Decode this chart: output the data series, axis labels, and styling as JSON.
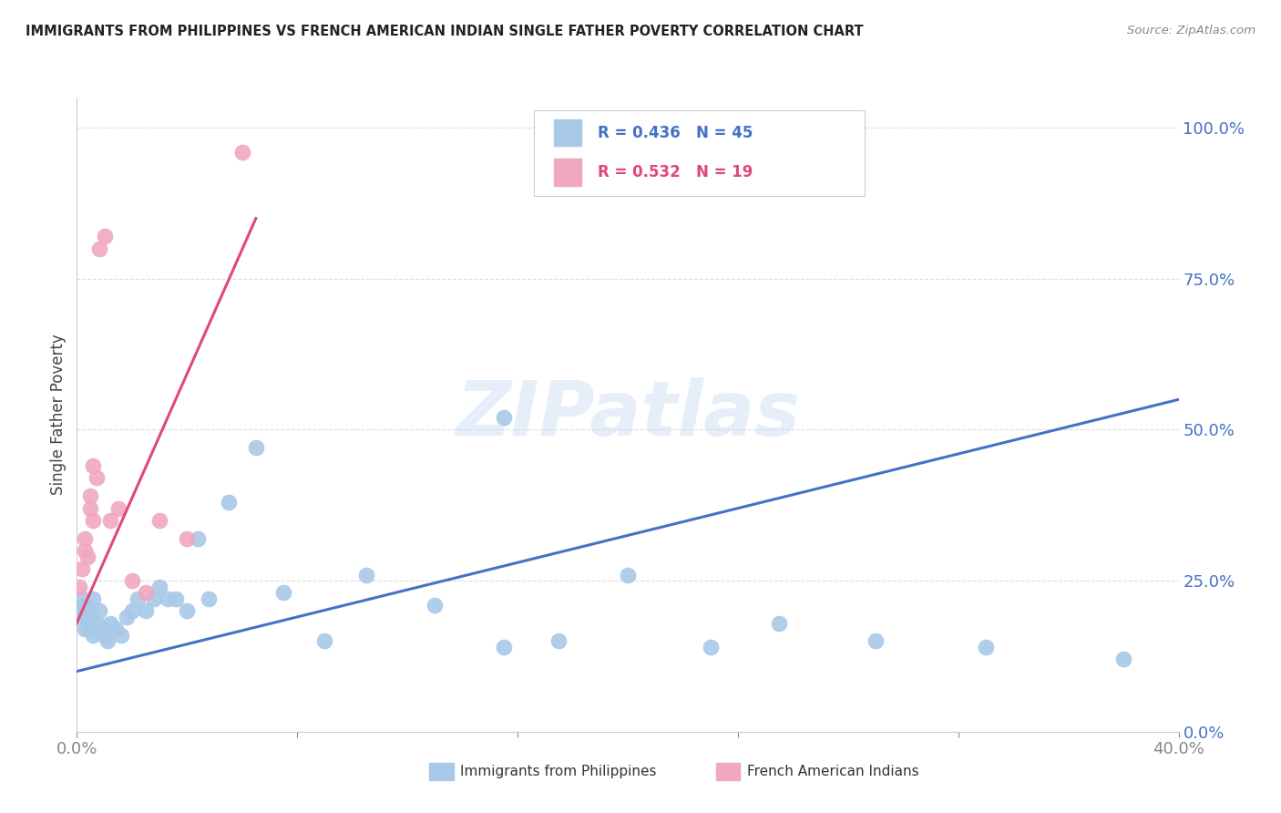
{
  "title": "IMMIGRANTS FROM PHILIPPINES VS FRENCH AMERICAN INDIAN SINGLE FATHER POVERTY CORRELATION CHART",
  "source": "Source: ZipAtlas.com",
  "ylabel": "Single Father Poverty",
  "ytick_vals": [
    0.0,
    0.25,
    0.5,
    0.75,
    1.0
  ],
  "ytick_labels": [
    "0.0%",
    "25.0%",
    "50.0%",
    "75.0%",
    "100.0%"
  ],
  "xtick_vals": [
    0.0,
    0.08,
    0.16,
    0.24,
    0.32,
    0.4
  ],
  "xlim": [
    0.0,
    0.4
  ],
  "ylim": [
    0.0,
    1.05
  ],
  "blue_R": 0.436,
  "blue_N": 45,
  "pink_R": 0.532,
  "pink_N": 19,
  "blue_color": "#a8c8e8",
  "pink_color": "#f0a8c0",
  "blue_line_color": "#4472c4",
  "pink_line_color": "#e04878",
  "watermark": "ZIPatlas",
  "legend_blue_label": "Immigrants from Philippines",
  "legend_pink_label": "French American Indians",
  "blue_points_x": [
    0.001,
    0.002,
    0.002,
    0.003,
    0.003,
    0.004,
    0.004,
    0.005,
    0.005,
    0.006,
    0.006,
    0.007,
    0.008,
    0.009,
    0.01,
    0.011,
    0.012,
    0.014,
    0.016,
    0.018,
    0.02,
    0.022,
    0.025,
    0.028,
    0.03,
    0.033,
    0.036,
    0.04,
    0.044,
    0.048,
    0.055,
    0.065,
    0.075,
    0.09,
    0.105,
    0.13,
    0.155,
    0.175,
    0.2,
    0.23,
    0.255,
    0.29,
    0.155,
    0.33,
    0.38
  ],
  "blue_points_y": [
    0.2,
    0.19,
    0.22,
    0.17,
    0.21,
    0.18,
    0.2,
    0.17,
    0.19,
    0.16,
    0.22,
    0.18,
    0.2,
    0.17,
    0.16,
    0.15,
    0.18,
    0.17,
    0.16,
    0.19,
    0.2,
    0.22,
    0.2,
    0.22,
    0.24,
    0.22,
    0.22,
    0.2,
    0.32,
    0.22,
    0.38,
    0.47,
    0.23,
    0.15,
    0.26,
    0.21,
    0.14,
    0.15,
    0.26,
    0.14,
    0.18,
    0.15,
    0.52,
    0.14,
    0.12
  ],
  "pink_points_x": [
    0.001,
    0.002,
    0.003,
    0.003,
    0.004,
    0.005,
    0.005,
    0.006,
    0.006,
    0.007,
    0.008,
    0.01,
    0.012,
    0.015,
    0.02,
    0.025,
    0.03,
    0.04,
    0.06
  ],
  "pink_points_y": [
    0.24,
    0.27,
    0.32,
    0.3,
    0.29,
    0.37,
    0.39,
    0.35,
    0.44,
    0.42,
    0.8,
    0.82,
    0.35,
    0.37,
    0.25,
    0.23,
    0.35,
    0.32,
    0.96
  ],
  "blue_trendline_x": [
    0.0,
    0.4
  ],
  "blue_trendline_y": [
    0.1,
    0.55
  ],
  "pink_trendline_x": [
    -0.002,
    0.065
  ],
  "pink_trendline_y": [
    0.16,
    0.85
  ],
  "grid_color": "#dddddd",
  "spine_color": "#cccccc"
}
